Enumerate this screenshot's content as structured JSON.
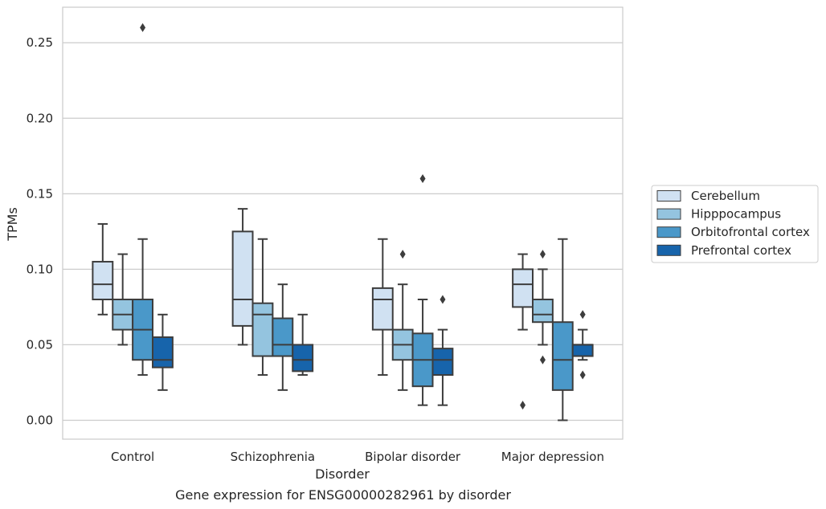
{
  "chart_data": {
    "type": "boxplot",
    "title": "",
    "caption": "Gene expression for ENSG00000282961 by disorder",
    "xlabel": "Disorder",
    "ylabel": "TPMs",
    "ylim": [
      -0.0125,
      0.2735
    ],
    "yticks": [
      0.0,
      0.05,
      0.1,
      0.15,
      0.2,
      0.25
    ],
    "ytick_labels": [
      "0.00",
      "0.05",
      "0.10",
      "0.15",
      "0.20",
      "0.25"
    ],
    "grid": "horizontal",
    "legend_position": "right",
    "categories": [
      "Control",
      "Schizophrenia",
      "Bipolar disorder",
      "Major depression"
    ],
    "series": [
      {
        "name": "Cerebellum",
        "color": "#d0e1f2",
        "boxes": [
          {
            "whislo": 0.07,
            "q1": 0.08,
            "med": 0.09,
            "q3": 0.105,
            "whishi": 0.13,
            "fliers": []
          },
          {
            "whislo": 0.05,
            "q1": 0.0625,
            "med": 0.08,
            "q3": 0.125,
            "whishi": 0.14,
            "fliers": []
          },
          {
            "whislo": 0.03,
            "q1": 0.06,
            "med": 0.08,
            "q3": 0.0875,
            "whishi": 0.12,
            "fliers": []
          },
          {
            "whislo": 0.06,
            "q1": 0.075,
            "med": 0.09,
            "q3": 0.1,
            "whishi": 0.11,
            "fliers": [
              0.01
            ]
          }
        ]
      },
      {
        "name": "Hipppocampus",
        "color": "#94c4df",
        "boxes": [
          {
            "whislo": 0.05,
            "q1": 0.06,
            "med": 0.07,
            "q3": 0.08,
            "whishi": 0.11,
            "fliers": []
          },
          {
            "whislo": 0.03,
            "q1": 0.0425,
            "med": 0.07,
            "q3": 0.0775,
            "whishi": 0.12,
            "fliers": []
          },
          {
            "whislo": 0.02,
            "q1": 0.04,
            "med": 0.05,
            "q3": 0.06,
            "whishi": 0.09,
            "fliers": [
              0.11
            ]
          },
          {
            "whislo": 0.05,
            "q1": 0.065,
            "med": 0.07,
            "q3": 0.08,
            "whishi": 0.1,
            "fliers": [
              0.11,
              0.04
            ]
          }
        ]
      },
      {
        "name": "Orbitofrontal cortex",
        "color": "#4a98c9",
        "boxes": [
          {
            "whislo": 0.03,
            "q1": 0.04,
            "med": 0.06,
            "q3": 0.08,
            "whishi": 0.12,
            "fliers": [
              0.26
            ]
          },
          {
            "whislo": 0.02,
            "q1": 0.0425,
            "med": 0.05,
            "q3": 0.0675,
            "whishi": 0.09,
            "fliers": []
          },
          {
            "whislo": 0.01,
            "q1": 0.0225,
            "med": 0.04,
            "q3": 0.0575,
            "whishi": 0.08,
            "fliers": [
              0.16
            ]
          },
          {
            "whislo": 0.0,
            "q1": 0.02,
            "med": 0.04,
            "q3": 0.065,
            "whishi": 0.12,
            "fliers": []
          }
        ]
      },
      {
        "name": "Prefrontal cortex",
        "color": "#1764ab",
        "boxes": [
          {
            "whislo": 0.02,
            "q1": 0.035,
            "med": 0.04,
            "q3": 0.055,
            "whishi": 0.07,
            "fliers": []
          },
          {
            "whislo": 0.03,
            "q1": 0.0325,
            "med": 0.04,
            "q3": 0.05,
            "whishi": 0.07,
            "fliers": []
          },
          {
            "whislo": 0.01,
            "q1": 0.03,
            "med": 0.04,
            "q3": 0.0475,
            "whishi": 0.06,
            "fliers": [
              0.08
            ]
          },
          {
            "whislo": 0.04,
            "q1": 0.0425,
            "med": 0.05,
            "q3": 0.05,
            "whishi": 0.06,
            "fliers": [
              0.07,
              0.03
            ]
          }
        ]
      }
    ]
  }
}
